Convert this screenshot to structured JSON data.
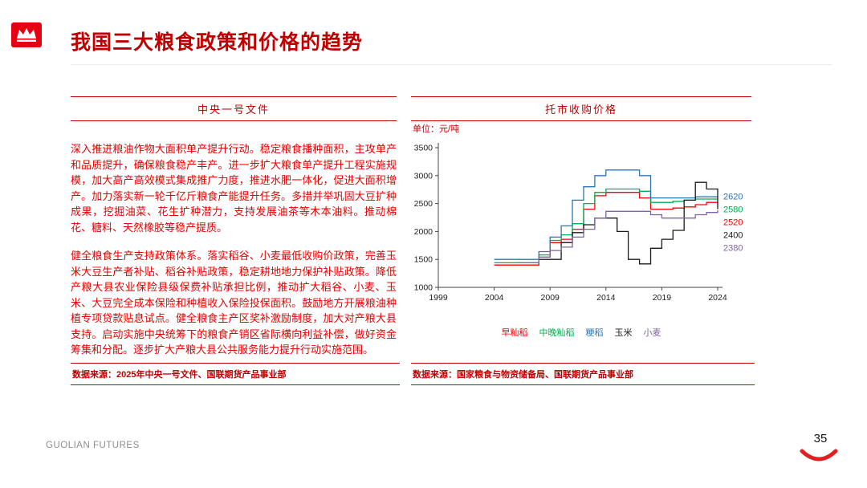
{
  "header": {
    "title": "我国三大粮食政策和价格的趋势"
  },
  "left_panel": {
    "section_title": "中央一号文件",
    "paragraphs": [
      "深入推进粮油作物大面积单产提升行动。稳定粮食播种面积，主攻单产和品质提升，确保粮食稳产丰产。进一步扩大粮食单产提升工程实施规模，加大高产高效模式集成推广力度，推进水肥一体化，促进大面积增产。加力落实新一轮千亿斤粮食产能提升任务。多措并举巩固大豆扩种成果，挖掘油菜、花生扩种潜力，支持发展油茶等木本油料。推动棉花、糖料、天然橡胶等稳产提质。",
      "健全粮食生产支持政策体系。落实稻谷、小麦最低收购价政策，完善玉米大豆生产者补贴、稻谷补贴政策，稳定耕地地力保护补贴政策。降低产粮大县农业保险县级保费补贴承担比例，推动扩大稻谷、小麦、玉米、大豆完全成本保险和种植收入保险投保面积。鼓励地方开展粮油种植专项贷款贴息试点。健全粮食主产区奖补激励制度，加大对产粮大县支持。启动实施中央统筹下的粮食产销区省际横向利益补偿，做好资金筹集和分配。逐步扩大产粮大县公共服务能力提升行动实施范围。"
    ],
    "source": "数据来源：2025年中央一号文件、国联期货产品事业部"
  },
  "right_panel": {
    "section_title": "托市收购价格",
    "unit_label": "单位：元/吨",
    "source": "数据来源：国家粮食与物资储备局、国联期货产品事业部"
  },
  "chart_data": {
    "type": "line",
    "step": true,
    "title": "托市收购价格",
    "ylabel": "元/吨",
    "xlabel": "",
    "grid": false,
    "legend_position": "bottom",
    "xlim": [
      1999,
      2024
    ],
    "ylim": [
      1000,
      3500
    ],
    "x_ticks": [
      1999,
      2004,
      2009,
      2014,
      2019,
      2024
    ],
    "y_ticks": [
      1000,
      1500,
      2000,
      2500,
      3000,
      3500
    ],
    "series": [
      {
        "name": "早籼稻",
        "color": "#FF0000",
        "end_label": 2520,
        "points": [
          [
            2004,
            1400
          ],
          [
            2008,
            1540
          ],
          [
            2009,
            1800
          ],
          [
            2010,
            1860
          ],
          [
            2011,
            2040
          ],
          [
            2012,
            2400
          ],
          [
            2013,
            2640
          ],
          [
            2014,
            2700
          ],
          [
            2017,
            2600
          ],
          [
            2018,
            2400
          ],
          [
            2020,
            2420
          ],
          [
            2021,
            2440
          ],
          [
            2022,
            2480
          ],
          [
            2023,
            2520
          ]
        ]
      },
      {
        "name": "中晚籼稻",
        "color": "#00B050",
        "end_label": 2580,
        "points": [
          [
            2004,
            1440
          ],
          [
            2008,
            1580
          ],
          [
            2009,
            1840
          ],
          [
            2010,
            1940
          ],
          [
            2011,
            2140
          ],
          [
            2012,
            2500
          ],
          [
            2013,
            2700
          ],
          [
            2014,
            2760
          ],
          [
            2017,
            2720
          ],
          [
            2018,
            2520
          ],
          [
            2020,
            2540
          ],
          [
            2021,
            2560
          ],
          [
            2022,
            2580
          ]
        ]
      },
      {
        "name": "粳稻",
        "color": "#2E75B6",
        "end_label": 2620,
        "points": [
          [
            2004,
            1500
          ],
          [
            2008,
            1640
          ],
          [
            2009,
            1900
          ],
          [
            2010,
            2100
          ],
          [
            2011,
            2560
          ],
          [
            2012,
            2800
          ],
          [
            2013,
            3000
          ],
          [
            2014,
            3100
          ],
          [
            2017,
            3000
          ],
          [
            2018,
            2600
          ],
          [
            2022,
            2620
          ]
        ]
      },
      {
        "name": "玉米",
        "color": "#1A1A1A",
        "end_label": 2400,
        "points": [
          [
            2008,
            1500
          ],
          [
            2010,
            1800
          ],
          [
            2011,
            1980
          ],
          [
            2012,
            2120
          ],
          [
            2013,
            2240
          ],
          [
            2015,
            2000
          ],
          [
            2016,
            1500
          ],
          [
            2017,
            1420
          ],
          [
            2018,
            1700
          ],
          [
            2019,
            1860
          ],
          [
            2020,
            2020
          ],
          [
            2021,
            2560
          ],
          [
            2022,
            2880
          ],
          [
            2023,
            2760
          ],
          [
            2024,
            2400
          ]
        ]
      },
      {
        "name": "小麦",
        "color": "#8064A2",
        "end_label": 2380,
        "points": [
          [
            2006,
            1440
          ],
          [
            2008,
            1540
          ],
          [
            2009,
            1660
          ],
          [
            2010,
            1720
          ],
          [
            2011,
            1900
          ],
          [
            2012,
            2040
          ],
          [
            2013,
            2240
          ],
          [
            2014,
            2360
          ],
          [
            2018,
            2300
          ],
          [
            2019,
            2240
          ],
          [
            2022,
            2300
          ],
          [
            2023,
            2340
          ],
          [
            2024,
            2380
          ]
        ]
      }
    ]
  },
  "footer": {
    "brand": "GUOLIAN FUTURES",
    "page_number": "35"
  }
}
